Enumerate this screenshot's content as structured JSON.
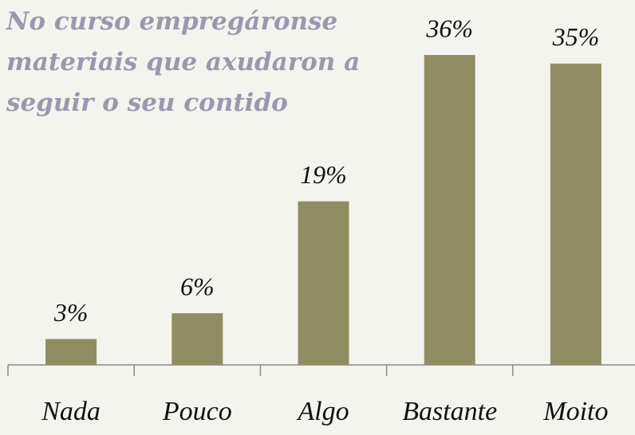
{
  "chart_data": {
    "type": "bar",
    "title": "No curso empregáronse materiais que axudaron a seguir o seu contido",
    "categories": [
      "Nada",
      "Pouco",
      "Algo",
      "Bastante",
      "Moito"
    ],
    "values": [
      3,
      6,
      19,
      36,
      35
    ],
    "value_labels": [
      "3%",
      "6%",
      "19%",
      "36%",
      "35%"
    ],
    "color": "#918d62"
  }
}
